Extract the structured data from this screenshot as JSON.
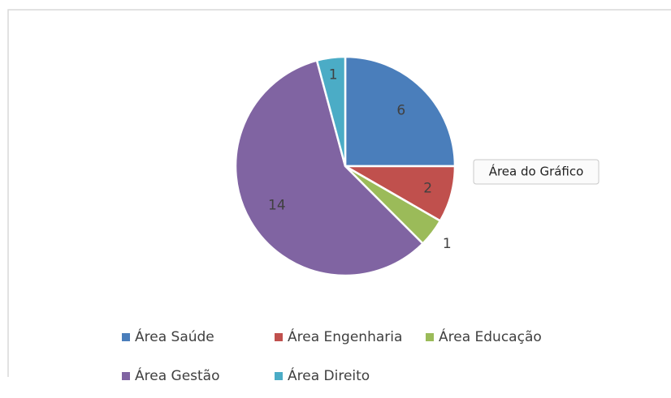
{
  "chart_data": {
    "type": "pie",
    "categories": [
      "Área Saúde",
      "Área Engenharia",
      "Área Educação",
      "Área Gestão",
      "Área Direito"
    ],
    "values": [
      6,
      2,
      1,
      14,
      1
    ],
    "colors": [
      "#4a7ebb",
      "#c0504d",
      "#9bbb59",
      "#8064a2",
      "#4bacc6"
    ],
    "legend": "bottom",
    "tooltip": "Área do Gráfico"
  }
}
